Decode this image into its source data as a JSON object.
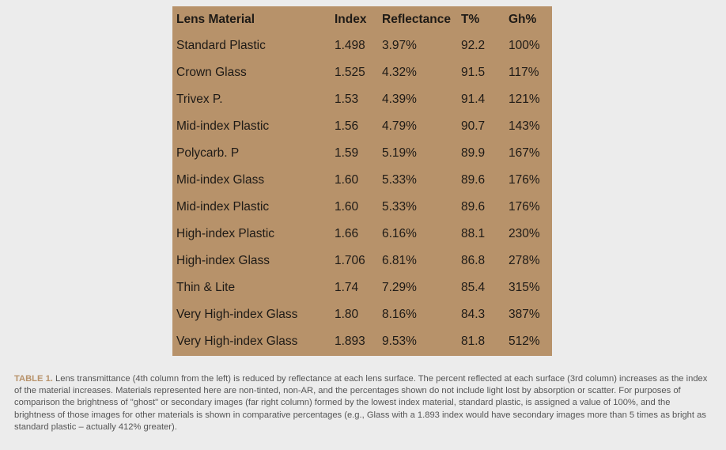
{
  "table": {
    "headers": [
      "Lens Material",
      "Index",
      "Reflectance",
      "T%",
      "Gh%"
    ],
    "rows": [
      [
        "Standard Plastic",
        "1.498",
        "3.97%",
        "92.2",
        "100%"
      ],
      [
        "Crown Glass",
        "1.525",
        "4.32%",
        "91.5",
        "117%"
      ],
      [
        "Trivex P.",
        "1.53",
        "4.39%",
        "91.4",
        "121%"
      ],
      [
        "Mid-index Plastic",
        "1.56",
        "4.79%",
        "90.7",
        "143%"
      ],
      [
        "Polycarb. P",
        "1.59",
        "5.19%",
        "89.9",
        "167%"
      ],
      [
        "Mid-index Glass",
        "1.60",
        "5.33%",
        "89.6",
        "176%"
      ],
      [
        "Mid-index Plastic",
        "1.60",
        "5.33%",
        "89.6",
        "176%"
      ],
      [
        "High-index Plastic",
        "1.66",
        "6.16%",
        "88.1",
        "230%"
      ],
      [
        "High-index Glass",
        "1.706",
        "6.81%",
        "86.8",
        "278%"
      ],
      [
        "Thin & Lite",
        "1.74",
        "7.29%",
        "85.4",
        "315%"
      ],
      [
        "Very High-index Glass",
        "1.80",
        "8.16%",
        "84.3",
        "387%"
      ],
      [
        "Very High-index Glass",
        "1.893",
        "9.53%",
        "81.8",
        "512%"
      ]
    ]
  },
  "caption": {
    "label": "TABLE 1.",
    "text": " Lens transmittance (4th column from the left) is reduced by reflectance at each lens surface. The percent reflected at each surface (3rd column) increases as the index of the material increases. Materials represented here are non-tinted, non-AR, and the percentages shown do not include light lost by absorption or scatter. For purposes of comparison the brightness of \"ghost\" or secondary images (far right column) formed by the lowest index material, standard plastic, is assigned a value of 100%, and the brightness of those images for other materials is shown in comparative percentages (e.g., Glass with a 1.893 index would have secondary images more than 5 times as bright as standard plastic – actually 412% greater)."
  },
  "colors": {
    "table_background": "#b7926a",
    "page_background": "#ececec",
    "caption_label": "#b7926a"
  }
}
